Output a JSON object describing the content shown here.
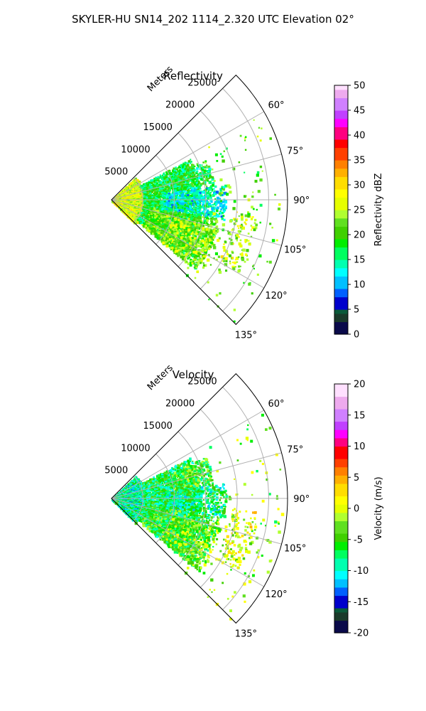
{
  "figure": {
    "suptitle": "SKYLER-HU  SN14_202  1114_2.320 UTC Elevation 02°"
  },
  "chart_data": [
    {
      "type": "heatmap",
      "projection": "polar-sector",
      "title": "Reflectivity",
      "radial_label": "Meters",
      "radial_ticks": [
        5000,
        10000,
        15000,
        20000,
        25000
      ],
      "radial_tick_labels": [
        "5000",
        "10000",
        "15000",
        "20000",
        "25000"
      ],
      "rmax": 28000,
      "azimuth_range_deg": [
        45,
        135
      ],
      "azimuth_ticks": [
        60,
        75,
        90,
        105,
        120,
        135
      ],
      "azimuth_tick_labels": [
        "60°",
        "75°",
        "90°",
        "105°",
        "120°",
        "135°"
      ],
      "grid": true,
      "colorbar": {
        "label": "Reflectivity dBZ",
        "vmin": 0,
        "vmax": 50,
        "ticks": [
          0,
          5,
          10,
          15,
          20,
          25,
          30,
          35,
          40,
          45,
          50
        ],
        "tick_labels": [
          "0",
          "5",
          "10",
          "15",
          "20",
          "25",
          "30",
          "35",
          "40",
          "45",
          "50"
        ]
      },
      "colormap": [
        {
          "v": 0,
          "c": "#0a0a4a"
        },
        {
          "v": 2,
          "c": "#1a3a2a"
        },
        {
          "v": 4,
          "c": "#0a5a3a"
        },
        {
          "v": 5,
          "c": "#0000cc"
        },
        {
          "v": 7,
          "c": "#0060ff"
        },
        {
          "v": 9,
          "c": "#00c0ff"
        },
        {
          "v": 11,
          "c": "#00ffff"
        },
        {
          "v": 13,
          "c": "#00ffb0"
        },
        {
          "v": 15,
          "c": "#00ff60"
        },
        {
          "v": 17,
          "c": "#00ee00"
        },
        {
          "v": 19,
          "c": "#40d000"
        },
        {
          "v": 21,
          "c": "#60e020"
        },
        {
          "v": 23,
          "c": "#b0ff30"
        },
        {
          "v": 25,
          "c": "#e6ff00"
        },
        {
          "v": 27,
          "c": "#ffff00"
        },
        {
          "v": 29,
          "c": "#ffdd00"
        },
        {
          "v": 31,
          "c": "#ffb000"
        },
        {
          "v": 33,
          "c": "#ff8000"
        },
        {
          "v": 35,
          "c": "#ff4000"
        },
        {
          "v": 37,
          "c": "#ff0000"
        },
        {
          "v": 39,
          "c": "#ff0080"
        },
        {
          "v": 41,
          "c": "#ff00ff"
        },
        {
          "v": 43,
          "c": "#c040ff"
        },
        {
          "v": 45,
          "c": "#d080ff"
        },
        {
          "v": 47,
          "c": "#eeaaee"
        },
        {
          "v": 49,
          "c": "#ffe0ff"
        },
        {
          "v": 50,
          "c": "#ffffff"
        }
      ],
      "regions": [
        {
          "az": [
            45,
            136
          ],
          "r": [
            0,
            5000
          ],
          "v": 26,
          "density": 0.95
        },
        {
          "az": [
            62,
            128
          ],
          "r": [
            5000,
            14000
          ],
          "v": 17,
          "density": 0.85
        },
        {
          "az": [
            66,
            82
          ],
          "r": [
            10000,
            16000
          ],
          "v": 17,
          "density": 0.7
        },
        {
          "az": [
            82,
            100
          ],
          "r": [
            8000,
            18000
          ],
          "v": 13,
          "density": 0.7
        },
        {
          "az": [
            100,
            130
          ],
          "r": [
            6000,
            17000
          ],
          "v": 21,
          "density": 0.75
        },
        {
          "az": [
            105,
            130
          ],
          "r": [
            10000,
            18000
          ],
          "v": 24,
          "density": 0.35
        },
        {
          "az": [
            60,
            140
          ],
          "r": [
            16000,
            27500
          ],
          "v": 21,
          "density": 0.04
        },
        {
          "az": [
            95,
            120
          ],
          "r": [
            19000,
            23000
          ],
          "v": 25,
          "density": 0.35
        }
      ]
    },
    {
      "type": "heatmap",
      "projection": "polar-sector",
      "title": "Velocity",
      "radial_label": "Meters",
      "radial_ticks": [
        5000,
        10000,
        15000,
        20000,
        25000
      ],
      "radial_tick_labels": [
        "5000",
        "10000",
        "15000",
        "20000",
        "25000"
      ],
      "rmax": 28000,
      "azimuth_range_deg": [
        45,
        135
      ],
      "azimuth_ticks": [
        60,
        75,
        90,
        105,
        120,
        135
      ],
      "azimuth_tick_labels": [
        "60°",
        "75°",
        "90°",
        "105°",
        "120°",
        "135°"
      ],
      "grid": true,
      "colorbar": {
        "label": "Velocity (m/s)",
        "vmin": -20,
        "vmax": 20,
        "ticks": [
          -20,
          -15,
          -10,
          -5,
          0,
          5,
          10,
          15,
          20
        ],
        "tick_labels": [
          "-20",
          "-15",
          "-10",
          "-5",
          "0",
          "5",
          "10",
          "15",
          "20"
        ]
      },
      "colormap": [
        {
          "v": -20,
          "c": "#0a0a4a"
        },
        {
          "v": -18.5,
          "c": "#1a3a2a"
        },
        {
          "v": -17,
          "c": "#0a5a3a"
        },
        {
          "v": -16,
          "c": "#0000cc"
        },
        {
          "v": -14.5,
          "c": "#0060ff"
        },
        {
          "v": -13,
          "c": "#00c0ff"
        },
        {
          "v": -11.5,
          "c": "#00ffff"
        },
        {
          "v": -10,
          "c": "#00ffb0"
        },
        {
          "v": -8.5,
          "c": "#00ff60"
        },
        {
          "v": -7,
          "c": "#00ee00"
        },
        {
          "v": -5.5,
          "c": "#40d000"
        },
        {
          "v": -4,
          "c": "#60e020"
        },
        {
          "v": -2.5,
          "c": "#b0ff30"
        },
        {
          "v": -1,
          "c": "#e6ff00"
        },
        {
          "v": 0.5,
          "c": "#ffff00"
        },
        {
          "v": 2,
          "c": "#ffdd00"
        },
        {
          "v": 3.5,
          "c": "#ffb000"
        },
        {
          "v": 5,
          "c": "#ff8000"
        },
        {
          "v": 6.5,
          "c": "#ff4000"
        },
        {
          "v": 8,
          "c": "#ff0000"
        },
        {
          "v": 9.5,
          "c": "#ff0080"
        },
        {
          "v": 11,
          "c": "#ff00ff"
        },
        {
          "v": 12.5,
          "c": "#c040ff"
        },
        {
          "v": 14,
          "c": "#d080ff"
        },
        {
          "v": 16,
          "c": "#eeaaee"
        },
        {
          "v": 18,
          "c": "#ffe0ff"
        },
        {
          "v": 20,
          "c": "#ffffff"
        }
      ],
      "regions": [
        {
          "az": [
            45,
            136
          ],
          "r": [
            0,
            5000
          ],
          "v": -9,
          "density": 0.95
        },
        {
          "az": [
            62,
            128
          ],
          "r": [
            5000,
            14000
          ],
          "v": -7,
          "density": 0.85
        },
        {
          "az": [
            66,
            82
          ],
          "r": [
            10000,
            16000
          ],
          "v": -5,
          "density": 0.7
        },
        {
          "az": [
            82,
            100
          ],
          "r": [
            8000,
            18000
          ],
          "v": -8,
          "density": 0.7
        },
        {
          "az": [
            100,
            130
          ],
          "r": [
            6000,
            17000
          ],
          "v": -6,
          "density": 0.75
        },
        {
          "az": [
            105,
            130
          ],
          "r": [
            10000,
            18000
          ],
          "v": -3,
          "density": 0.35
        },
        {
          "az": [
            60,
            140
          ],
          "r": [
            16000,
            27500
          ],
          "v": -3,
          "density": 0.04
        },
        {
          "az": [
            95,
            120
          ],
          "r": [
            19000,
            23000
          ],
          "v": 0,
          "density": 0.35
        }
      ]
    }
  ]
}
